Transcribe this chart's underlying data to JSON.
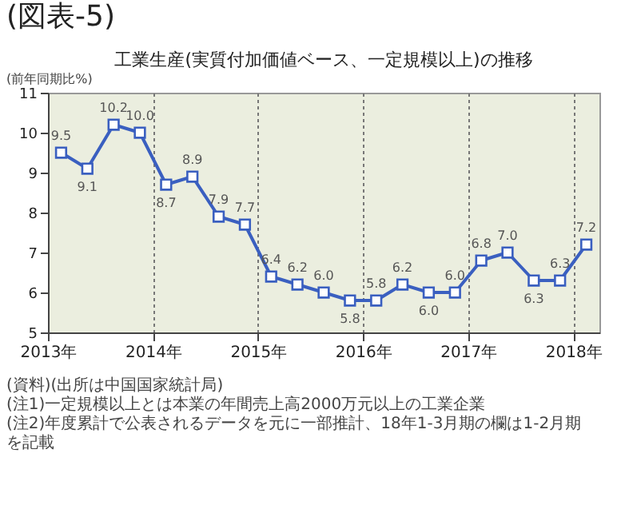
{
  "chart_data": {
    "type": "line",
    "title": "(図表-5)",
    "subtitle": "工業生産(実質付加価値ベース、一定規模以上)の推移",
    "ylabel": "(前年同期比%)",
    "x": [
      2013.125,
      2013.375,
      2013.625,
      2013.875,
      2014.125,
      2014.375,
      2014.625,
      2014.875,
      2015.125,
      2015.375,
      2015.625,
      2015.875,
      2016.125,
      2016.375,
      2016.625,
      2016.875,
      2017.125,
      2017.375,
      2017.625,
      2017.875,
      2018.125
    ],
    "series": [
      {
        "color": "#3a5fc0",
        "values": [
          9.5,
          9.1,
          10.2,
          10.0,
          8.7,
          8.9,
          7.9,
          7.7,
          6.4,
          6.2,
          6.0,
          5.8,
          5.8,
          6.2,
          6.0,
          6.0,
          6.8,
          7.0,
          6.3,
          6.3,
          7.2
        ],
        "value_labels": [
          "9.5",
          "9.1",
          "10.2",
          "10.0",
          "8.7",
          "8.9",
          "7.9",
          "7.7",
          "6.4",
          "6.2",
          "6.0",
          "5.8",
          "5.8",
          "6.2",
          "6.0",
          "6.0",
          "6.8",
          "7.0",
          "6.3",
          "6.3",
          "7.2"
        ]
      }
    ],
    "xlim": [
      2013,
      2018.25
    ],
    "xticks": [
      {
        "value": 2013,
        "label": "2013年"
      },
      {
        "value": 2014,
        "label": "2014年"
      },
      {
        "value": 2015,
        "label": "2015年"
      },
      {
        "value": 2016,
        "label": "2016年"
      },
      {
        "value": 2017,
        "label": "2017年"
      },
      {
        "value": 2018,
        "label": "2018年"
      }
    ],
    "ylim": [
      5,
      11
    ],
    "yticks": [
      5,
      6,
      7,
      8,
      9,
      10,
      11
    ],
    "grid": "x",
    "marker": "square",
    "line_style": "solid",
    "annotations": [
      "(資料)(出所は中国国家統計局)",
      "(注1)一定規模以上とは本業の年間売上高2000万元以上の工業企業",
      "(注2)年度累計で公表されるデータを元に一部推計、18年1-3月期の欄は1-2月期を記載"
    ]
  }
}
